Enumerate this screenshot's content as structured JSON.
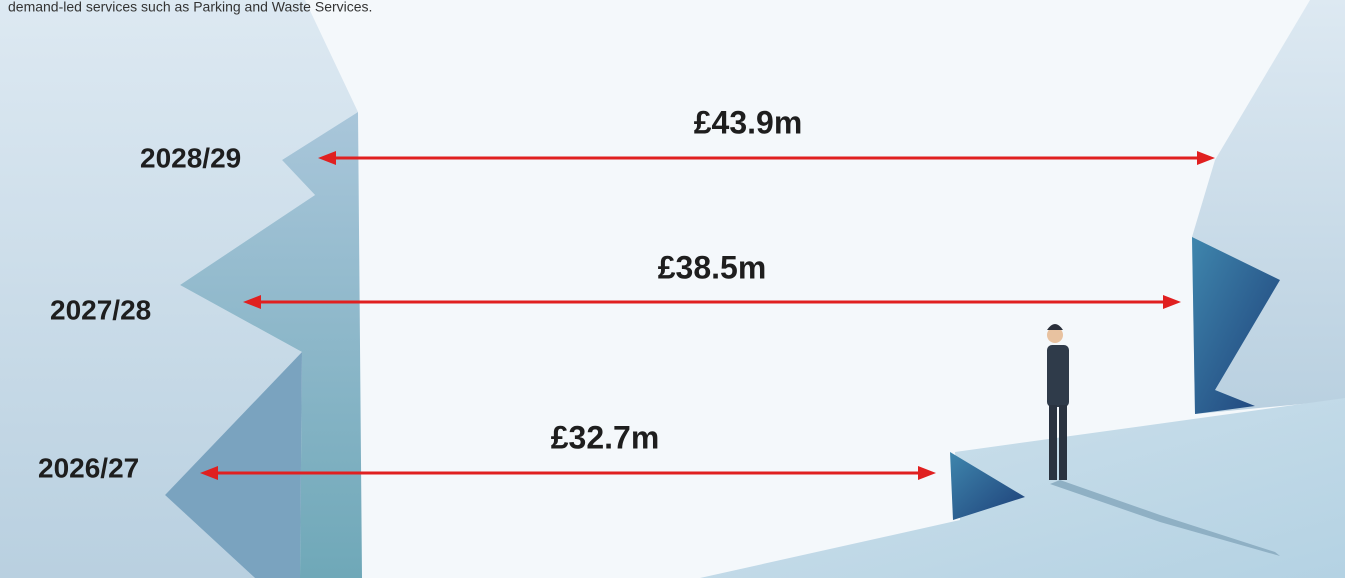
{
  "header": {
    "text": "demand-led services such as Parking and Waste Services."
  },
  "rows": [
    {
      "year": "2028/29",
      "amount": "£43.9m"
    },
    {
      "year": "2027/28",
      "amount": "£38.5m"
    },
    {
      "year": "2026/27",
      "amount": "£32.7m"
    }
  ]
}
